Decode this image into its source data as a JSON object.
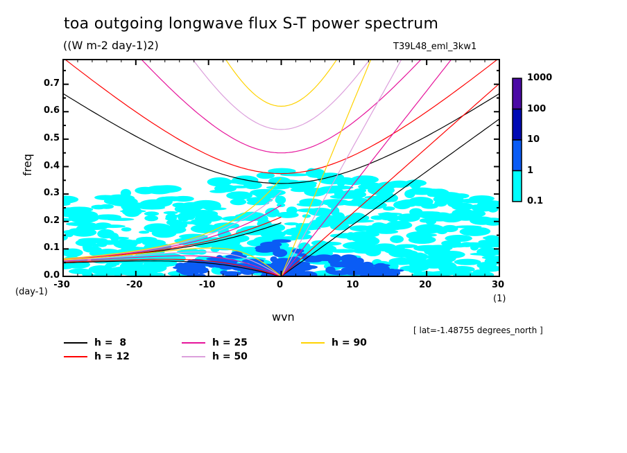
{
  "chart_data": {
    "type": "heatmap",
    "title": "toa outgoing longwave flux S-T power spectrum",
    "subtitle": "((W m-2 day-1)2)",
    "run_id": "T39L48_eml_3kw1",
    "xlabel": "wvn",
    "x_unit": "(1)",
    "ylabel": "freq",
    "y_unit": "(day-1)",
    "xlim": [
      -30,
      30
    ],
    "ylim": [
      0,
      0.79
    ],
    "x_ticks": [
      "-30",
      "-20",
      "-10",
      "0",
      "10",
      "20",
      "30"
    ],
    "x_tick_values": [
      -30,
      -20,
      -10,
      0,
      10,
      20,
      30
    ],
    "y_ticks": [
      "0.0",
      "0.1",
      "0.2",
      "0.3",
      "0.4",
      "0.5",
      "0.6",
      "0.7"
    ],
    "y_tick_values": [
      0,
      0.1,
      0.2,
      0.3,
      0.4,
      0.5,
      0.6,
      0.7
    ],
    "colorbar": {
      "levels": [
        "0.1",
        "1",
        "10",
        "100",
        "1000"
      ],
      "colors": [
        "#00ffff",
        "#0a5cf5",
        "#000ab4",
        "#4b0aa5"
      ]
    },
    "series": [
      {
        "name": "h =  8",
        "h": 8,
        "color": "#000000"
      },
      {
        "name": "h = 12",
        "h": 12,
        "color": "#ff0000"
      },
      {
        "name": "h = 25",
        "h": 25,
        "color": "#e6149b"
      },
      {
        "name": "h = 50",
        "h": 50,
        "color": "#dc9fdc"
      },
      {
        "name": "h = 90",
        "h": 90,
        "color": "#ffd200"
      }
    ],
    "annotation": "[ lat=-1.48755 degrees_north ]"
  }
}
